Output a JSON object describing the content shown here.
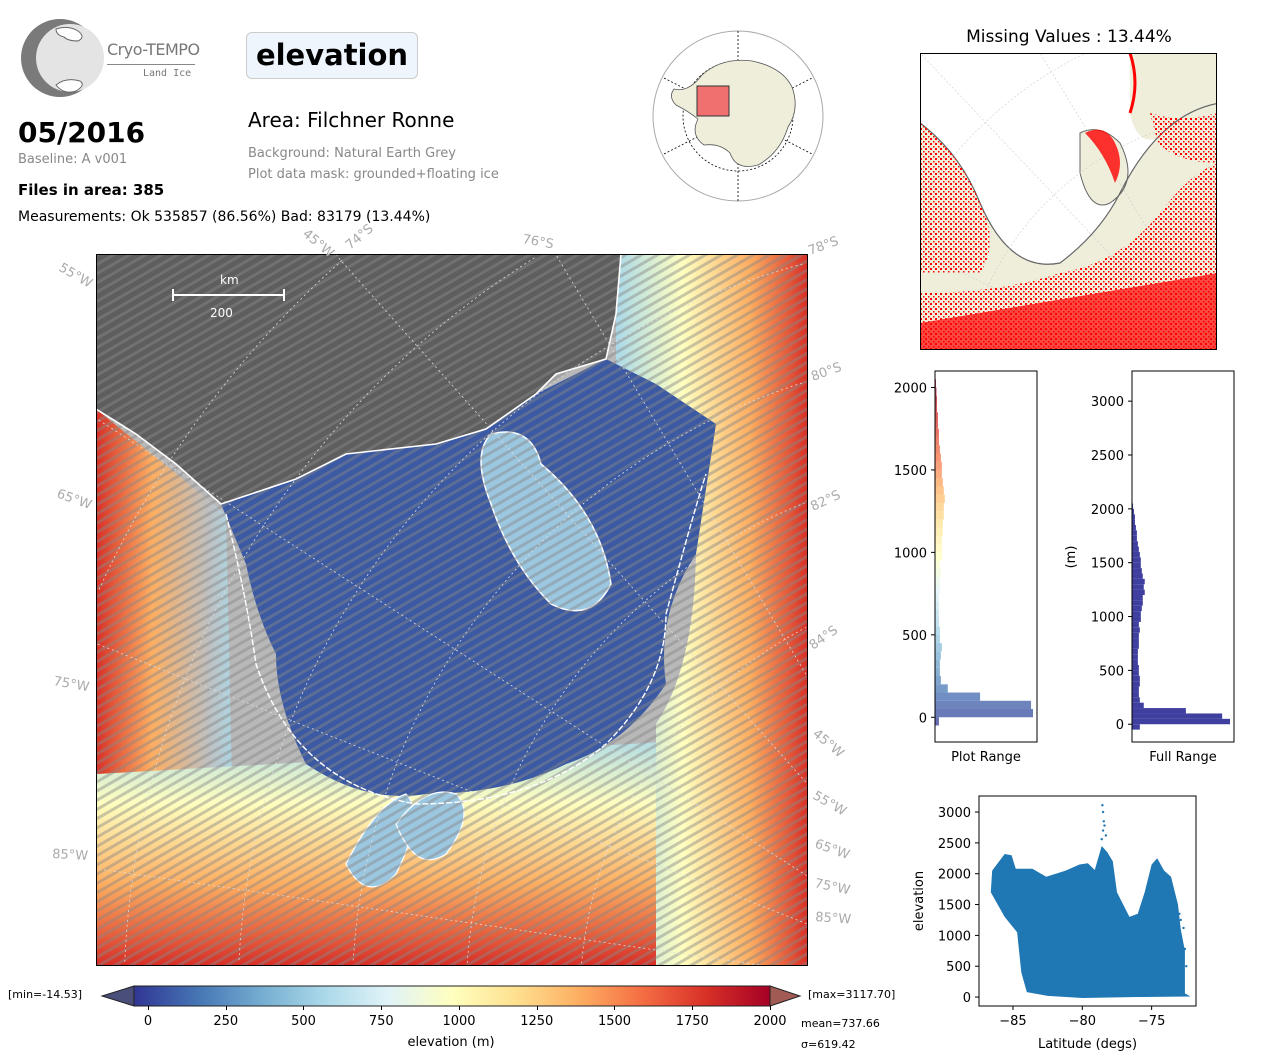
{
  "logo": {
    "name": "Cryo-TEMPO",
    "subtitle": "Land Ice"
  },
  "header": {
    "variable": "elevation",
    "date": "05/2016",
    "baseline": "Baseline: A v001",
    "files": "Files in area: 385",
    "measurements": "Measurements: Ok 535857 (86.56%) Bad: 83179 (13.44%)",
    "area": "Area: Filchner Ronne",
    "background": "Background: Natural Earth Grey",
    "mask": "Plot data mask: grounded+floating ice"
  },
  "missing": {
    "title": "Missing Values : 13.44%",
    "color": "#ff0000"
  },
  "map": {
    "scale_unit": "km",
    "scale_value": "200",
    "graticule_labels": {
      "top": [
        "45°W",
        "74°S",
        "76°S",
        "78°S"
      ],
      "left": [
        "55°W",
        "65°W",
        "75°W",
        "85°W"
      ],
      "right": [
        "80°S",
        "82°S",
        "84°S",
        "45°W",
        "55°W",
        "65°W",
        "75°W",
        "85°W"
      ]
    }
  },
  "colorbar": {
    "min_label": "[min=-14.53]",
    "max_label": "[max=3117.70]",
    "mean_label": "mean=737.66",
    "sigma_label": "σ=619.42",
    "label": "elevation (m)",
    "range": [
      -45,
      2000
    ],
    "ticks": [
      "0",
      "250",
      "500",
      "750",
      "1000",
      "1250",
      "1500",
      "1750",
      "2000"
    ],
    "colormap": [
      "#313695",
      "#4575b4",
      "#74add1",
      "#abd9e9",
      "#e0f3f8",
      "#ffffbf",
      "#fee090",
      "#fdae61",
      "#f46d43",
      "#d73027",
      "#a50026"
    ]
  },
  "chart_data": [
    {
      "type": "bar",
      "orientation": "horizontal",
      "title": "",
      "xlabel": "Plot Range",
      "ylabel": "",
      "ylim": [
        -150,
        2100
      ],
      "yticks": [
        "0",
        "500",
        "1000",
        "1500",
        "2000"
      ],
      "bin_start": -50,
      "bin_width": 50,
      "relative_counts": [
        0.04,
        1.0,
        0.98,
        0.46,
        0.13,
        0.06,
        0.05,
        0.05,
        0.06,
        0.07,
        0.05,
        0.05,
        0.04,
        0.04,
        0.04,
        0.04,
        0.05,
        0.05,
        0.06,
        0.05,
        0.07,
        0.07,
        0.07,
        0.08,
        0.08,
        0.09,
        0.09,
        0.1,
        0.09,
        0.08,
        0.07,
        0.07,
        0.06,
        0.05,
        0.04,
        0.04,
        0.03,
        0.03,
        0.02,
        0.02,
        0.015,
        0.01
      ]
    },
    {
      "type": "bar",
      "orientation": "horizontal",
      "title": "",
      "xlabel": "Full Range",
      "ylabel": "(m)",
      "ylim": [
        -165,
        3280
      ],
      "yticks": [
        "0",
        "500",
        "1000",
        "1500",
        "2000",
        "2500",
        "3000"
      ],
      "bin_start": -50,
      "bin_width": 50,
      "color": "#3f3fa0",
      "relative_counts": [
        0.08,
        1.0,
        0.92,
        0.55,
        0.12,
        0.08,
        0.07,
        0.07,
        0.08,
        0.08,
        0.07,
        0.07,
        0.06,
        0.06,
        0.06,
        0.07,
        0.07,
        0.07,
        0.08,
        0.07,
        0.09,
        0.09,
        0.1,
        0.11,
        0.11,
        0.13,
        0.12,
        0.13,
        0.11,
        0.1,
        0.09,
        0.09,
        0.08,
        0.07,
        0.06,
        0.05,
        0.05,
        0.04,
        0.03,
        0.03,
        0.02,
        0.01,
        0.005
      ]
    },
    {
      "type": "scatter",
      "title": "",
      "xlabel": "Latitude (degs)",
      "ylabel": "elevation",
      "xlim": [
        -87.45,
        -71.8
      ],
      "ylim": [
        -145,
        3260
      ],
      "xticks": [
        "-85",
        "-80",
        "-75"
      ],
      "xtick_values": [
        -85,
        -80,
        -75
      ],
      "yticks": [
        "0",
        "500",
        "1000",
        "1500",
        "2000",
        "2500",
        "3000"
      ],
      "color": "#1f77b4",
      "envelope": [
        [
          -86.5,
          2050
        ],
        [
          -86,
          2200
        ],
        [
          -85.6,
          2320
        ],
        [
          -85.1,
          2300
        ],
        [
          -84.8,
          2080
        ],
        [
          -83.6,
          2080
        ],
        [
          -82.6,
          1950
        ],
        [
          -81.2,
          2050
        ],
        [
          -80.2,
          2150
        ],
        [
          -79.6,
          2170
        ],
        [
          -79.1,
          2060
        ],
        [
          -78.6,
          2450
        ],
        [
          -78.2,
          2350
        ],
        [
          -77.8,
          2200
        ],
        [
          -77.5,
          1700
        ],
        [
          -76.6,
          1300
        ],
        [
          -76,
          1350
        ],
        [
          -75.5,
          1700
        ],
        [
          -75,
          2150
        ],
        [
          -74.6,
          2250
        ],
        [
          -74.1,
          2050
        ],
        [
          -73.6,
          1950
        ],
        [
          -73.1,
          1500
        ],
        [
          -72.9,
          1100
        ],
        [
          -72.6,
          750
        ],
        [
          -72.6,
          60
        ],
        [
          -72.2,
          10
        ],
        [
          -76,
          0
        ],
        [
          -80,
          -15
        ],
        [
          -82.5,
          20
        ],
        [
          -84,
          80
        ],
        [
          -84.4,
          400
        ],
        [
          -84.7,
          1050
        ],
        [
          -85.6,
          1300
        ],
        [
          -86.6,
          1700
        ]
      ],
      "outliers": [
        [
          -78.55,
          3110
        ],
        [
          -78.5,
          3000
        ],
        [
          -78.45,
          2850
        ],
        [
          -78.4,
          2780
        ],
        [
          -78.5,
          2700
        ],
        [
          -78.3,
          2620
        ],
        [
          -78.6,
          2560
        ],
        [
          -72.6,
          780
        ],
        [
          -72.7,
          1120
        ],
        [
          -72.9,
          1250
        ],
        [
          -73,
          1350
        ],
        [
          -72.5,
          500
        ],
        [
          -74.2,
          30
        ],
        [
          -74.8,
          40
        ]
      ]
    }
  ]
}
